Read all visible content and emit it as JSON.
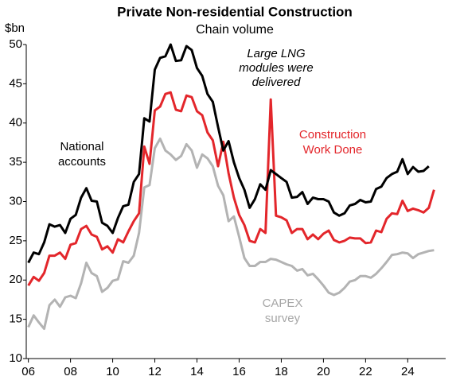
{
  "chart_data": {
    "type": "line",
    "title": "Private Non-residential Construction",
    "subtitle": "Chain volume",
    "y_label": "$bn",
    "x": [
      2006,
      2006.25,
      2006.5,
      2006.75,
      2007,
      2007.25,
      2007.5,
      2007.75,
      2008,
      2008.25,
      2008.5,
      2008.75,
      2009,
      2009.25,
      2009.5,
      2009.75,
      2010,
      2010.25,
      2010.5,
      2010.75,
      2011,
      2011.25,
      2011.5,
      2011.75,
      2012,
      2012.25,
      2012.5,
      2012.75,
      2013,
      2013.25,
      2013.5,
      2013.75,
      2014,
      2014.25,
      2014.5,
      2014.75,
      2015,
      2015.25,
      2015.5,
      2015.75,
      2016,
      2016.25,
      2016.5,
      2016.75,
      2017,
      2017.25,
      2017.5,
      2017.75,
      2018,
      2018.25,
      2018.5,
      2018.75,
      2019,
      2019.25,
      2019.5,
      2019.75,
      2020,
      2020.25,
      2020.5,
      2020.75,
      2021,
      2021.25,
      2021.5,
      2021.75,
      2022,
      2022.25,
      2022.5,
      2022.75,
      2023,
      2023.25,
      2023.5,
      2023.75,
      2024,
      2024.25,
      2024.5,
      2024.75,
      2025,
      2025.25
    ],
    "series": [
      {
        "name": "National accounts",
        "color": "#000000",
        "values": [
          22.2,
          23.5,
          23.3,
          24.8,
          27.1,
          26.8,
          27.0,
          26.0,
          27.8,
          28.3,
          30.5,
          31.7,
          30.1,
          30.0,
          27.3,
          26.9,
          26.0,
          27.9,
          29.4,
          29.6,
          32.5,
          33.5,
          40.6,
          40.2,
          46.8,
          48.3,
          48.5,
          50.0,
          47.9,
          48.0,
          49.8,
          49.3,
          47.0,
          46.0,
          43.7,
          42.7,
          39.5,
          36.5,
          37.7,
          35.0,
          33.0,
          31.5,
          29.2,
          30.3,
          32.2,
          31.5,
          34.0,
          33.5,
          33.0,
          32.5,
          30.5,
          30.6,
          31.2,
          29.7,
          30.5,
          30.3,
          30.3,
          30.0,
          28.6,
          28.2,
          28.5,
          29.5,
          29.7,
          30.2,
          29.9,
          30.0,
          31.6,
          31.9,
          33.0,
          33.5,
          33.8,
          35.4,
          33.5,
          34.4,
          33.8,
          33.9,
          34.5,
          null
        ]
      },
      {
        "name": "Construction Work Done",
        "color": "#e3262b",
        "values": [
          19.3,
          20.4,
          19.9,
          20.9,
          23.1,
          23.1,
          23.5,
          22.7,
          24.5,
          24.7,
          26.5,
          26.9,
          25.8,
          25.5,
          23.9,
          24.3,
          23.5,
          25.2,
          24.8,
          26.2,
          27.5,
          28.5,
          37.0,
          34.8,
          41.6,
          42.1,
          43.7,
          43.9,
          41.7,
          41.5,
          43.5,
          43.3,
          41.5,
          41.0,
          38.8,
          37.8,
          34.5,
          37.6,
          33.6,
          30.5,
          28.3,
          27.0,
          25.0,
          24.8,
          26.5,
          26.0,
          43.0,
          28.2,
          28.0,
          27.6,
          26.0,
          26.5,
          26.5,
          25.2,
          25.8,
          25.2,
          25.9,
          26.3,
          25.1,
          24.8,
          25.0,
          25.4,
          25.3,
          25.3,
          24.7,
          24.8,
          26.3,
          26.1,
          27.8,
          28.5,
          28.4,
          30.1,
          28.8,
          29.1,
          28.9,
          28.6,
          29.2,
          31.5
        ]
      },
      {
        "name": "CAPEX survey",
        "color": "#b3b3b3",
        "values": [
          14.0,
          15.5,
          14.6,
          13.8,
          16.8,
          17.5,
          16.6,
          17.8,
          18.0,
          17.7,
          19.6,
          22.2,
          20.9,
          20.5,
          18.5,
          19.0,
          19.9,
          20.1,
          22.4,
          22.2,
          23.1,
          26.0,
          31.8,
          32.1,
          36.8,
          38.0,
          36.5,
          36.0,
          35.3,
          35.8,
          37.3,
          36.5,
          34.3,
          36.0,
          35.5,
          34.5,
          32.0,
          30.8,
          27.5,
          28.1,
          25.5,
          22.8,
          21.8,
          21.8,
          22.3,
          22.3,
          22.7,
          22.6,
          22.3,
          22.0,
          21.8,
          21.2,
          21.4,
          20.6,
          20.8,
          20.1,
          19.3,
          18.4,
          18.1,
          18.4,
          19.0,
          19.8,
          20.0,
          20.5,
          20.5,
          20.3,
          20.8,
          21.5,
          22.3,
          23.2,
          23.3,
          23.5,
          23.4,
          22.8,
          23.3,
          23.5,
          23.7,
          23.8
        ]
      }
    ],
    "series_labels": [
      {
        "lines": [
          "National",
          "accounts"
        ]
      },
      {
        "lines": [
          "Construction",
          "Work Done"
        ]
      },
      {
        "lines": [
          "CAPEX",
          "survey"
        ]
      }
    ],
    "annotation": {
      "lines": [
        "Large LNG",
        "modules were",
        "delivered"
      ]
    },
    "xlim": [
      2005.9,
      2025.8
    ],
    "xticks": [
      {
        "value": 2006,
        "label": "06"
      },
      {
        "value": 2008,
        "label": "08"
      },
      {
        "value": 2010,
        "label": "10"
      },
      {
        "value": 2012,
        "label": "12"
      },
      {
        "value": 2014,
        "label": "14"
      },
      {
        "value": 2016,
        "label": "16"
      },
      {
        "value": 2018,
        "label": "18"
      },
      {
        "value": 2020,
        "label": "20"
      },
      {
        "value": 2022,
        "label": "22"
      },
      {
        "value": 2024,
        "label": "24"
      }
    ],
    "ylim": [
      10,
      50
    ],
    "yticks": [
      10,
      15,
      20,
      25,
      30,
      35,
      40,
      45,
      50
    ]
  }
}
